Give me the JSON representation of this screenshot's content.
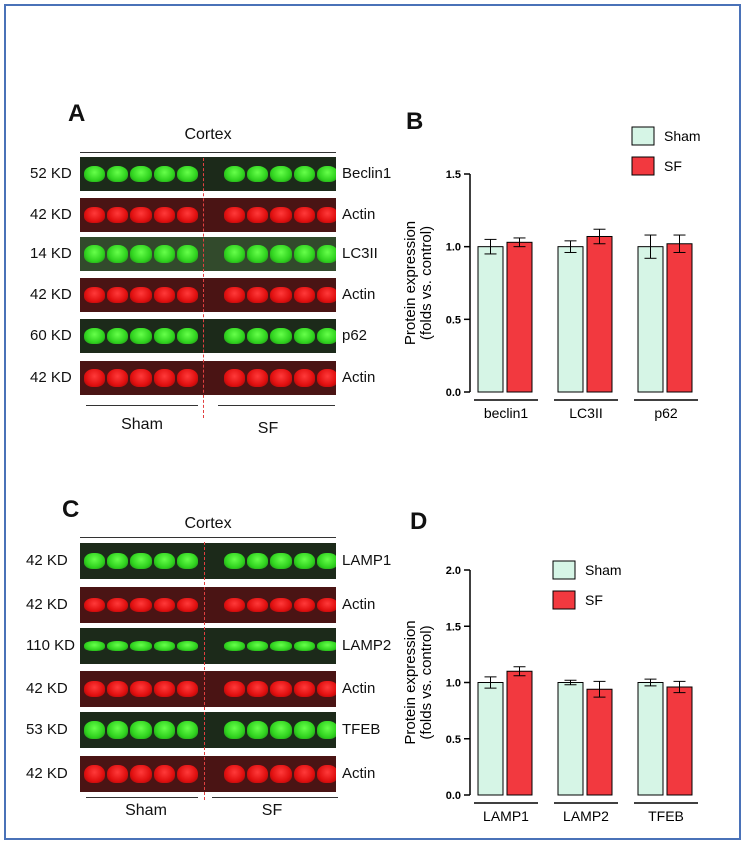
{
  "panels": {
    "A": {
      "letter": "A",
      "header": "Cortex",
      "rows": [
        {
          "kd": "52 KD",
          "label": "Beclin1",
          "color": "green",
          "level": 0.9
        },
        {
          "kd": "42 KD",
          "label": "Actin",
          "color": "red",
          "level": 0.85
        },
        {
          "kd": "14 KD",
          "label": "LC3II",
          "color": "lc3",
          "level": 0.95
        },
        {
          "kd": "42 KD",
          "label": "Actin",
          "color": "red",
          "level": 0.85
        },
        {
          "kd": "60 KD",
          "label": "p62",
          "color": "green",
          "level": 0.9
        },
        {
          "kd": "42 KD",
          "label": "Actin",
          "color": "red",
          "level": 0.95
        }
      ],
      "groups": [
        "Sham",
        "SF"
      ]
    },
    "C": {
      "letter": "C",
      "header": "Cortex",
      "rows": [
        {
          "kd": "42 KD",
          "label": "LAMP1",
          "color": "green",
          "level": 0.8
        },
        {
          "kd": "42 KD",
          "label": "Actin",
          "color": "red",
          "level": 0.75
        },
        {
          "kd": "110 KD",
          "label": "LAMP2",
          "color": "green",
          "level": 0.5
        },
        {
          "kd": "42 KD",
          "label": "Actin",
          "color": "red",
          "level": 0.8
        },
        {
          "kd": "53 KD",
          "label": "TFEB",
          "color": "green",
          "level": 0.9
        },
        {
          "kd": "42 KD",
          "label": "Actin",
          "color": "red",
          "level": 0.95
        }
      ],
      "groups": [
        "Sham",
        "SF"
      ]
    },
    "B": {
      "letter": "B"
    },
    "D": {
      "letter": "D"
    }
  },
  "colors": {
    "sham": "#d6f5e6",
    "sf": "#f2393f",
    "frame": "#4a72b8",
    "divider": "#e04040"
  },
  "chart_data": [
    {
      "type": "bar",
      "panel": "B",
      "categories": [
        "beclin1",
        "LC3II",
        "p62"
      ],
      "series": [
        {
          "name": "Sham",
          "values": [
            1.0,
            1.0,
            1.0
          ],
          "errors": [
            0.05,
            0.04,
            0.08
          ]
        },
        {
          "name": "SF",
          "values": [
            1.03,
            1.07,
            1.02
          ],
          "errors": [
            0.03,
            0.05,
            0.06
          ]
        }
      ],
      "ylabel": "Protein expression (folds vs. control)",
      "ylim": [
        0,
        1.5
      ],
      "yticks": [
        "0.0",
        "0.5",
        "1.0",
        "1.5"
      ],
      "legend": "top-right"
    },
    {
      "type": "bar",
      "panel": "D",
      "categories": [
        "LAMP1",
        "LAMP2",
        "TFEB"
      ],
      "series": [
        {
          "name": "Sham",
          "values": [
            1.0,
            1.0,
            1.0
          ],
          "errors": [
            0.05,
            0.02,
            0.03
          ]
        },
        {
          "name": "SF",
          "values": [
            1.1,
            0.94,
            0.96
          ],
          "errors": [
            0.04,
            0.07,
            0.05
          ]
        }
      ],
      "ylabel": "Protein expression (folds vs. control)",
      "ylim": [
        0,
        2.0
      ],
      "yticks": [
        "0.0",
        "0.5",
        "1.0",
        "1.5",
        "2.0"
      ],
      "legend": "top-right"
    }
  ]
}
